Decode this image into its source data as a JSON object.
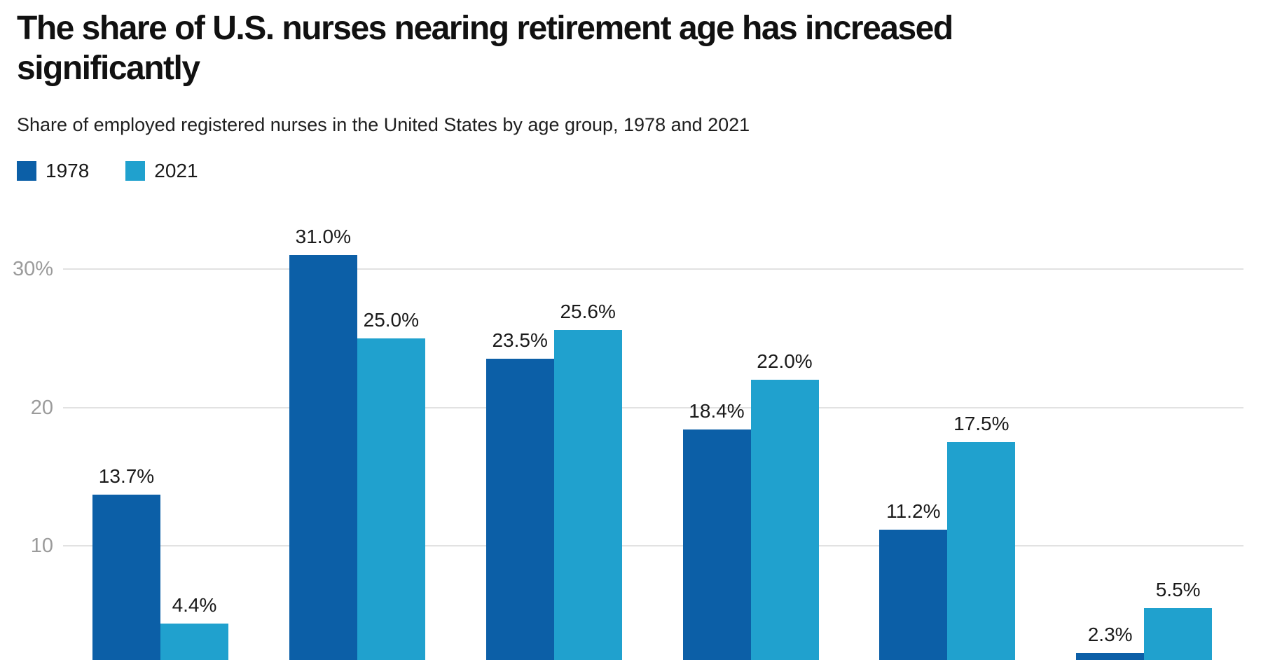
{
  "header": {
    "title_lines": [
      "The share of U.S. nurses nearing retirement age has increased",
      "significantly"
    ],
    "subtitle": "Share of employed registered nurses in the United States by age group, 1978 and 2021"
  },
  "legend": {
    "items": [
      {
        "label": "1978",
        "color": "#0c5fa7"
      },
      {
        "label": "2021",
        "color": "#20a1ce"
      }
    ]
  },
  "chart_data": {
    "type": "bar",
    "grouped": true,
    "group_count": 6,
    "categories": [
      "",
      "",
      "",
      "",
      "",
      ""
    ],
    "series": [
      {
        "name": "1978",
        "color": "#0c5fa7",
        "values": [
          13.7,
          31.0,
          23.5,
          18.4,
          11.2,
          2.3
        ],
        "labels": [
          "13.7%",
          "31.0%",
          "23.5%",
          "18.4%",
          "11.2%",
          "2.3%"
        ]
      },
      {
        "name": "2021",
        "color": "#20a1ce",
        "values": [
          4.4,
          25.0,
          25.6,
          22.0,
          17.5,
          5.5
        ],
        "labels": [
          "4.4%",
          "25.0%",
          "25.6%",
          "22.0%",
          "17.5%",
          "5.5%"
        ]
      }
    ],
    "y_axis": {
      "ticks": [
        {
          "value": 30,
          "label": "30%"
        },
        {
          "value": 20,
          "label": "20"
        },
        {
          "value": 10,
          "label": "10"
        }
      ],
      "ylim": [
        0,
        36
      ],
      "grid": true
    },
    "legend_position": "top-left",
    "bottom_cropped": true
  },
  "colors": {
    "grid": "#e2e2e2",
    "tick_text": "#9b9b9b",
    "label_text": "#1a1a1a",
    "background": "#ffffff"
  }
}
